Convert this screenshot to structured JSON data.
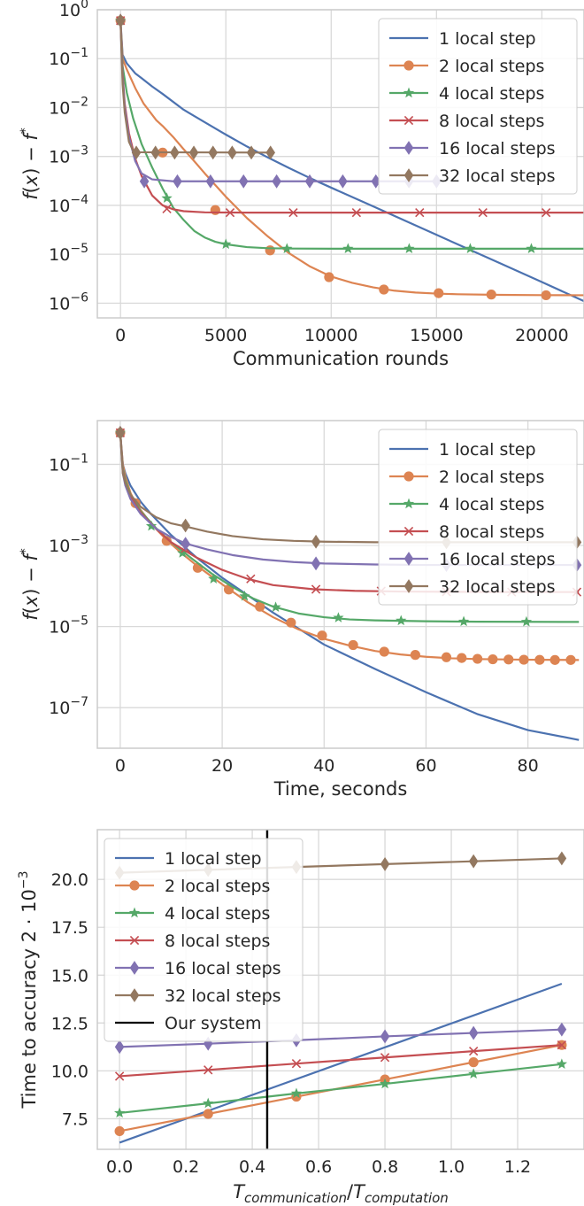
{
  "chart_data": [
    {
      "type": "line",
      "xlabel": "Communication rounds",
      "ylabel": "f(x) − f*",
      "ylabel_parts": {
        "f": "f",
        "x": "x",
        "fstar": "f",
        "star": "*"
      },
      "yscale": "log",
      "xlim": [
        -1100,
        22000
      ],
      "ylim": [
        5e-07,
        1.0
      ],
      "xticks": [
        0,
        5000,
        10000,
        15000,
        20000
      ],
      "xtick_labels": [
        "0",
        "5000",
        "10000",
        "15000",
        "20000"
      ],
      "yticks": [
        1e-06,
        1e-05,
        0.0001,
        0.001,
        0.01,
        0.1,
        1
      ],
      "ytick_labels": [
        {
          "base": "10",
          "exp": "−6"
        },
        {
          "base": "10",
          "exp": "−5"
        },
        {
          "base": "10",
          "exp": "−4"
        },
        {
          "base": "10",
          "exp": "−3"
        },
        {
          "base": "10",
          "exp": "−2"
        },
        {
          "base": "10",
          "exp": "−1"
        },
        {
          "base": "10",
          "exp": "0"
        }
      ],
      "grid": true,
      "legend_position": "top-right",
      "series": [
        {
          "name": "1 local step",
          "color": "#4c72b0",
          "marker": "none",
          "x": [
            0,
            100,
            300,
            700,
            1000,
            1500,
            2000,
            3000,
            4000,
            5000,
            6000,
            7000,
            8000,
            9000,
            10000,
            12000,
            14000,
            16000,
            18000,
            20000,
            22000
          ],
          "y": [
            0.6,
            0.12,
            0.08,
            0.05,
            0.04,
            0.027,
            0.019,
            0.009,
            0.005,
            0.0028,
            0.0016,
            0.00095,
            0.00058,
            0.00036,
            0.00023,
            9.5e-05,
            3.9e-05,
            1.6e-05,
            6.6e-06,
            2.7e-06,
            1.1e-06
          ]
        },
        {
          "name": "2 local steps",
          "color": "#dd8452",
          "marker": "circle",
          "x": [
            0,
            100,
            300,
            700,
            1100,
            1700,
            2000,
            2500,
            3000,
            3500,
            4000,
            4500,
            5000,
            6000,
            7000,
            8000,
            9000,
            10000,
            11000,
            12000,
            13000,
            14000,
            15000,
            16000,
            18000,
            20000,
            22000
          ],
          "y": [
            0.6,
            0.1,
            0.06,
            0.025,
            0.012,
            0.0055,
            0.0042,
            0.0025,
            0.0014,
            0.0008,
            0.00045,
            0.00026,
            0.00015,
            5.5e-05,
            2.3e-05,
            1.05e-05,
            5.6e-06,
            3.5e-06,
            2.6e-06,
            2.1e-06,
            1.8e-06,
            1.65e-06,
            1.57e-06,
            1.52e-06,
            1.48e-06,
            1.46e-06,
            1.45e-06
          ],
          "markers_x": [
            0,
            2000,
            4500,
            7100,
            9900,
            12500,
            15100,
            17600,
            20200
          ],
          "markers_y": [
            0.6,
            0.0012,
            8e-05,
            1.2e-05,
            3.4e-06,
            1.9e-06,
            1.6e-06,
            1.5e-06,
            1.45e-06
          ]
        },
        {
          "name": "4 local steps",
          "color": "#55a868",
          "marker": "star",
          "x": [
            0,
            100,
            300,
            600,
            1000,
            1500,
            2000,
            2500,
            3000,
            3500,
            4000,
            4500,
            5000,
            6000,
            7000,
            8000,
            10000,
            14000,
            22000
          ],
          "y": [
            0.6,
            0.07,
            0.02,
            0.006,
            0.0018,
            0.0006,
            0.00022,
            9e-05,
            5e-05,
            3e-05,
            2.2e-05,
            1.8e-05,
            1.6e-05,
            1.4e-05,
            1.33e-05,
            1.31e-05,
            1.3e-05,
            1.3e-05,
            1.3e-05
          ],
          "markers_x": [
            0,
            2200,
            5000,
            7900,
            10800,
            13700,
            16600,
            19500
          ],
          "markers_y": [
            0.6,
            0.00014,
            1.6e-05,
            1.3e-05,
            1.3e-05,
            1.3e-05,
            1.3e-05,
            1.3e-05
          ]
        },
        {
          "name": "8 local steps",
          "color": "#c44e52",
          "marker": "x",
          "x": [
            0,
            100,
            200,
            400,
            700,
            1000,
            1500,
            2000,
            2500,
            3000,
            4000,
            6000,
            10000,
            22000
          ],
          "y": [
            0.6,
            0.05,
            0.012,
            0.003,
            0.0009,
            0.0004,
            0.00016,
            0.0001,
            8.3e-05,
            7.6e-05,
            7.2e-05,
            7.1e-05,
            7.1e-05,
            7.1e-05
          ],
          "markers_x": [
            0,
            2200,
            5200,
            8200,
            11200,
            14200,
            17200,
            20200
          ],
          "markers_y": [
            0.6,
            8.5e-05,
            7.1e-05,
            7.1e-05,
            7.1e-05,
            7.1e-05,
            7.1e-05,
            7.1e-05
          ]
        },
        {
          "name": "16 local steps",
          "color": "#8172b2",
          "marker": "diamond",
          "x": [
            0,
            100,
            200,
            400,
            700,
            1000,
            1500,
            2500,
            15000
          ],
          "y": [
            0.6,
            0.04,
            0.01,
            0.0025,
            0.0008,
            0.00045,
            0.00034,
            0.00031,
            0.00031
          ],
          "markers_x": [
            0,
            1130,
            2700,
            4270,
            5840,
            7410,
            8980,
            10550,
            12120,
            13690,
            15000
          ],
          "markers_y": [
            0.6,
            0.00031,
            0.00031,
            0.00031,
            0.00031,
            0.00031,
            0.00031,
            0.00031,
            0.00031,
            0.00031,
            0.00031
          ]
        },
        {
          "name": "32 local steps",
          "color": "#937860",
          "marker": "diamond",
          "x": [
            0,
            100,
            200,
            400,
            600,
            800,
            7200
          ],
          "y": [
            0.6,
            0.03,
            0.008,
            0.002,
            0.0013,
            0.00122,
            0.0012
          ],
          "markers_x": [
            0,
            750,
            1660,
            2570,
            3480,
            4390,
            5300,
            6210,
            7120
          ],
          "markers_y": [
            0.6,
            0.0012,
            0.0012,
            0.0012,
            0.0012,
            0.0012,
            0.0012,
            0.0012,
            0.0012
          ]
        }
      ]
    },
    {
      "type": "line",
      "xlabel": "Time, seconds",
      "ylabel": "f(x) − f*",
      "ylabel_parts": {
        "f": "f",
        "x": "x",
        "fstar": "f",
        "star": "*"
      },
      "yscale": "log",
      "xlim": [
        -4.5,
        91
      ],
      "ylim": [
        1e-08,
        1.2
      ],
      "xticks": [
        0,
        20,
        40,
        60,
        80
      ],
      "xtick_labels": [
        "0",
        "20",
        "40",
        "60",
        "80"
      ],
      "yticks": [
        1e-07,
        1e-05,
        0.001,
        0.1
      ],
      "ytick_labels": [
        {
          "base": "10",
          "exp": "−7"
        },
        {
          "base": "10",
          "exp": "−5"
        },
        {
          "base": "10",
          "exp": "−3"
        },
        {
          "base": "10",
          "exp": "−1"
        }
      ],
      "grid": true,
      "legend_position": "top-right",
      "series": [
        {
          "name": "1 local step",
          "color": "#4c72b0",
          "marker": "none",
          "x": [
            0,
            0.5,
            1,
            2,
            4,
            6,
            10,
            15,
            20,
            30,
            40,
            50,
            60,
            70,
            80,
            90
          ],
          "y": [
            0.6,
            0.1,
            0.06,
            0.03,
            0.012,
            0.006,
            0.0018,
            0.0005,
            0.00016,
            2.2e-05,
            3.5e-06,
            6e-07,
            1.1e-07,
            3.5e-08,
            1e-08,
            1.5e-08
          ],
          "y_fix": [
            0.6,
            0.1,
            0.06,
            0.03,
            0.012,
            0.006,
            0.0018,
            0.0005,
            0.00016,
            2.2e-05,
            3.6e-06,
            9e-07,
            2.4e-07,
            7e-08,
            2.8e-08,
            1.6e-08
          ]
        },
        {
          "name": "2 local steps",
          "color": "#dd8452",
          "marker": "circle",
          "x": [
            0,
            0.5,
            1,
            2,
            3,
            6,
            9,
            12,
            15,
            20,
            25,
            30,
            35,
            40,
            45,
            50,
            55,
            60,
            65,
            70,
            80,
            90
          ],
          "y": [
            0.6,
            0.1,
            0.05,
            0.02,
            0.011,
            0.0035,
            0.0014,
            0.00065,
            0.00032,
            0.00011,
            4e-05,
            1.7e-05,
            8.5e-06,
            5e-06,
            3.4e-06,
            2.5e-06,
            2.05e-06,
            1.8e-06,
            1.65e-06,
            1.58e-06,
            1.52e-06,
            1.5e-06
          ],
          "markers_x": [
            0,
            3,
            9.1,
            15.2,
            21.3,
            27.4,
            33.5,
            39.6,
            45.7,
            51.8,
            57.9,
            64,
            67,
            70.1,
            73.1,
            76.2,
            79.2,
            82.3,
            85.3,
            88.4
          ],
          "markers_y": [
            0.6,
            0.011,
            0.0013,
            0.00028,
            8.2e-05,
            3.1e-05,
            1.25e-05,
            6e-06,
            3.5e-06,
            2.4e-06,
            2e-06,
            1.75e-06,
            1.68e-06,
            1.6e-06,
            1.56e-06,
            1.54e-06,
            1.52e-06,
            1.51e-06,
            1.5e-06,
            1.5e-06
          ]
        },
        {
          "name": "4 local steps",
          "color": "#55a868",
          "marker": "star",
          "x": [
            0,
            0.5,
            1,
            2,
            4,
            7,
            10,
            14,
            18,
            22,
            26,
            30,
            35,
            40,
            45,
            50,
            60,
            70,
            80,
            90
          ],
          "y": [
            0.6,
            0.08,
            0.04,
            0.018,
            0.007,
            0.0027,
            0.0012,
            0.00048,
            0.0002,
            9.5e-05,
            5e-05,
            3.1e-05,
            2.1e-05,
            1.7e-05,
            1.5e-05,
            1.42e-05,
            1.35e-05,
            1.32e-05,
            1.31e-05,
            1.3e-05
          ],
          "markers_x": [
            0,
            6.1,
            12.2,
            18.3,
            24.4,
            30.5,
            42.8,
            55.1,
            67.4,
            79.7
          ],
          "markers_y": [
            0.6,
            0.003,
            0.00065,
            0.00015,
            5.6e-05,
            3e-05,
            1.65e-05,
            1.4e-05,
            1.33e-05,
            1.31e-05
          ]
        },
        {
          "name": "8 local steps",
          "color": "#c44e52",
          "marker": "x",
          "x": [
            0,
            0.5,
            1,
            2,
            4,
            7,
            10,
            15,
            20,
            25,
            30,
            38,
            46,
            55,
            65,
            75,
            90
          ],
          "y": [
            0.6,
            0.07,
            0.035,
            0.016,
            0.0065,
            0.0026,
            0.0012,
            0.0005,
            0.00025,
            0.00015,
            0.000105,
            8.3e-05,
            7.6e-05,
            7.3e-05,
            7.2e-05,
            7.1e-05,
            7.1e-05
          ],
          "markers_x": [
            0,
            12.8,
            25.6,
            38.4,
            51.2,
            64,
            76.8,
            89.6
          ],
          "markers_y": [
            0.6,
            0.00085,
            0.00015,
            8.3e-05,
            7.5e-05,
            7.2e-05,
            7.1e-05,
            7.1e-05
          ]
        },
        {
          "name": "16 local steps",
          "color": "#8172b2",
          "marker": "diamond",
          "x": [
            0,
            0.5,
            1,
            2,
            4,
            7,
            10,
            13,
            17,
            22,
            28,
            34,
            40,
            50,
            60,
            75,
            90
          ],
          "y": [
            0.6,
            0.06,
            0.03,
            0.014,
            0.006,
            0.0026,
            0.0016,
            0.0011,
            0.0008,
            0.00058,
            0.00045,
            0.00039,
            0.00036,
            0.00034,
            0.00033,
            0.00033,
            0.00033
          ],
          "markers_x": [
            0,
            12.8,
            38.4,
            64,
            89.6
          ],
          "markers_y": [
            0.6,
            0.0011,
            0.00036,
            0.00033,
            0.00033
          ]
        },
        {
          "name": "32 local steps",
          "color": "#937860",
          "marker": "diamond",
          "x": [
            0,
            0.5,
            1,
            2,
            4,
            7,
            10,
            13,
            17,
            22,
            28,
            34,
            40,
            50,
            60,
            75,
            90
          ],
          "y": [
            0.6,
            0.06,
            0.035,
            0.018,
            0.009,
            0.005,
            0.0035,
            0.0029,
            0.0022,
            0.0017,
            0.00142,
            0.0013,
            0.00124,
            0.0012,
            0.0012,
            0.0012,
            0.0012
          ],
          "markers_x": [
            0,
            12.8,
            38.4,
            64,
            89.6
          ],
          "markers_y": [
            0.6,
            0.0031,
            0.00124,
            0.0012,
            0.0012
          ]
        }
      ]
    },
    {
      "type": "line",
      "xlabel_parts": {
        "t1": "T",
        "s1": "communication",
        "slash": "/",
        "t2": "T",
        "s2": "computation"
      },
      "ylabel_parts": {
        "text": "Time to accuracy 2 · 10",
        "exp": "−3"
      },
      "yscale": "linear",
      "xlim": [
        -0.067,
        1.4
      ],
      "ylim": [
        5.9,
        22.6
      ],
      "xticks": [
        0.0,
        0.2,
        0.4,
        0.6,
        0.8,
        1.0,
        1.2
      ],
      "xtick_labels": [
        "0.0",
        "0.2",
        "0.4",
        "0.6",
        "0.8",
        "1.0",
        "1.2"
      ],
      "yticks": [
        7.5,
        10.0,
        12.5,
        15.0,
        17.5,
        20.0
      ],
      "ytick_labels": [
        "7.5",
        "10.0",
        "12.5",
        "15.0",
        "17.5",
        "20.0"
      ],
      "grid": true,
      "legend_position": "top-left",
      "vline": {
        "name": "Our system",
        "x": 0.445,
        "color": "#000000"
      },
      "series": [
        {
          "name": "1 local step",
          "color": "#4c72b0",
          "marker": "none",
          "x": [
            0,
            1.333
          ],
          "y": [
            6.25,
            14.55
          ]
        },
        {
          "name": "2 local steps",
          "color": "#dd8452",
          "marker": "circle",
          "x": [
            0,
            0.267,
            0.533,
            0.8,
            1.067,
            1.333
          ],
          "y": [
            6.85,
            7.75,
            8.65,
            9.55,
            10.45,
            11.35
          ]
        },
        {
          "name": "4 local steps",
          "color": "#55a868",
          "marker": "star",
          "x": [
            0,
            0.267,
            0.533,
            0.8,
            1.067,
            1.333
          ],
          "y": [
            7.8,
            8.3,
            8.82,
            9.32,
            9.84,
            10.35
          ]
        },
        {
          "name": "8 local steps",
          "color": "#c44e52",
          "marker": "x",
          "x": [
            0,
            0.267,
            0.533,
            0.8,
            1.067,
            1.333
          ],
          "y": [
            9.72,
            10.05,
            10.38,
            10.7,
            11.03,
            11.35
          ]
        },
        {
          "name": "16 local steps",
          "color": "#8172b2",
          "marker": "diamond",
          "x": [
            0,
            0.267,
            0.533,
            0.8,
            1.067,
            1.333
          ],
          "y": [
            11.25,
            11.42,
            11.6,
            11.8,
            11.98,
            12.16
          ]
        },
        {
          "name": "32 local steps",
          "color": "#937860",
          "marker": "diamond",
          "x": [
            0,
            0.267,
            0.533,
            0.8,
            1.067,
            1.333
          ],
          "y": [
            20.35,
            20.5,
            20.65,
            20.8,
            20.95,
            21.1
          ]
        }
      ]
    }
  ]
}
